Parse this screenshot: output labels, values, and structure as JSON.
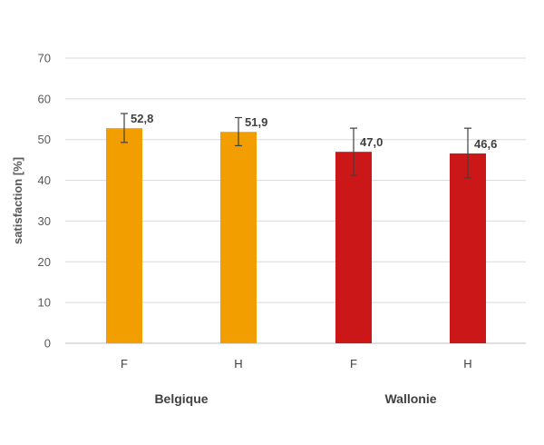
{
  "chart_data": {
    "type": "bar",
    "ylabel": "satisfaction [%]",
    "ylim": [
      0,
      70
    ],
    "yticks": [
      0,
      10,
      20,
      30,
      40,
      50,
      60,
      70
    ],
    "grid": true,
    "groups": [
      "Belgique",
      "Wallonie"
    ],
    "categories": [
      "F",
      "H",
      "F",
      "H"
    ],
    "category_groups": [
      "Belgique",
      "Belgique",
      "Wallonie",
      "Wallonie"
    ],
    "values": [
      52.8,
      51.9,
      47.0,
      46.6
    ],
    "value_labels": [
      "52,8",
      "51,9",
      "47,0",
      "46,6"
    ],
    "error_low": [
      49.3,
      48.5,
      41.2,
      40.6
    ],
    "error_high": [
      56.4,
      55.4,
      52.8,
      52.8
    ],
    "colors": [
      "#F29E00",
      "#F29E00",
      "#CC1719",
      "#CC1719"
    ]
  }
}
